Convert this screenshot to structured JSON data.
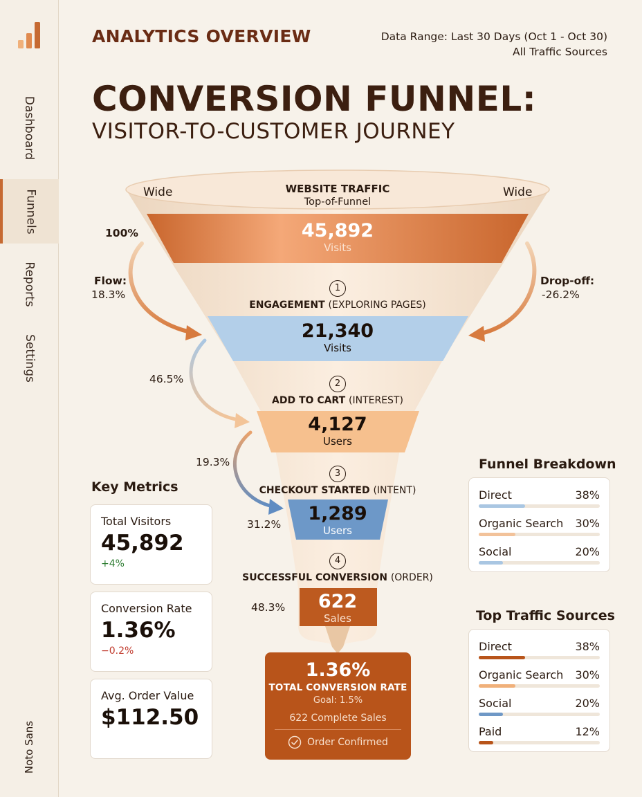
{
  "sidebar": {
    "items": [
      {
        "label": "Dashboard",
        "active": false
      },
      {
        "label": "Funnels",
        "active": true
      },
      {
        "label": "Reports",
        "active": false
      },
      {
        "label": "Settings",
        "active": false
      }
    ],
    "footer_label": "Noto Sans"
  },
  "header": {
    "overview": "ANALYTICS OVERVIEW",
    "range_line1": "Data Range: Last 30 Days (Oct 1 - Oct 30)",
    "range_line2": "All Traffic Sources"
  },
  "title": "CONVERSION FUNNEL:",
  "subtitle": "VISITOR-TO-CUSTOMER JOURNEY",
  "funnel": {
    "wide_left": "Wide",
    "wide_right": "Wide",
    "top": {
      "heading": "WEBSITE TRAFFIC",
      "sub": "Top-of-Funnel",
      "value": "45,892",
      "unit": "Visits"
    },
    "stages": [
      {
        "num": "1",
        "heading": "ENGAGEMENT",
        "sub": "(EXPLORING PAGES)",
        "value": "21,340",
        "unit": "Visits"
      },
      {
        "num": "2",
        "heading": "ADD TO CART",
        "sub": "(INTEREST)",
        "value": "4,127",
        "unit": "Users"
      },
      {
        "num": "3",
        "heading": "CHECKOUT STARTED",
        "sub": "(INTENT)",
        "value": "1,289",
        "unit": "Users"
      },
      {
        "num": "4",
        "heading": "SUCCESSFUL CONVERSION",
        "sub": "(ORDER)",
        "value": "622",
        "unit": "Sales"
      }
    ],
    "labels": {
      "pct_100": "100%",
      "flow_label": "Flow:",
      "flow_value": "18.3%",
      "dropoff_label": "Drop-off:",
      "dropoff_value": "-26.2%",
      "pct_465": "46.5%",
      "pct_193": "19.3%",
      "pct_312": "31.2%",
      "pct_483": "48.3%"
    }
  },
  "result": {
    "value": "1.36%",
    "label": "TOTAL CONVERSION RATE",
    "goal": "Goal: 1.5%",
    "sales": "622 Complete Sales",
    "confirm": "Order Confirmed"
  },
  "key_metrics": {
    "title": "Key Metrics",
    "cards": [
      {
        "label": "Total Visitors",
        "value": "45,892",
        "change": "+4%",
        "change_color": "#2e7d32"
      },
      {
        "label": "Conversion Rate",
        "value": "1.36%",
        "change": "−0.2%",
        "change_color": "#c0392b"
      },
      {
        "label": "Avg. Order Value",
        "value": "$112.50",
        "change": ""
      }
    ]
  },
  "funnel_breakdown": {
    "title": "Funnel Breakdown",
    "rows": [
      {
        "name": "Direct",
        "pct": "38%",
        "fill": 0.38,
        "color": "#a9c6e2"
      },
      {
        "name": "Organic Search",
        "pct": "30%",
        "fill": 0.3,
        "color": "#f2c29a"
      },
      {
        "name": "Social",
        "pct": "20%",
        "fill": 0.2,
        "color": "#a9c6e2"
      }
    ]
  },
  "top_traffic": {
    "title": "Top Traffic Sources",
    "rows": [
      {
        "name": "Direct",
        "pct": "38%",
        "fill": 0.38,
        "color": "#b8541a"
      },
      {
        "name": "Organic Search",
        "pct": "30%",
        "fill": 0.3,
        "color": "#f0b07a"
      },
      {
        "name": "Social",
        "pct": "20%",
        "fill": 0.2,
        "color": "#6f98c6"
      },
      {
        "name": "Paid",
        "pct": "12%",
        "fill": 0.12,
        "color": "#b8541a"
      }
    ]
  },
  "colors": {
    "accent": "#c66a32",
    "top_band": "#cf6f33",
    "engagement_band": "#b3cfe9",
    "cart_band": "#f6c08e",
    "checkout_band": "#6d98c8",
    "conversion_band": "#bd5a1f"
  }
}
